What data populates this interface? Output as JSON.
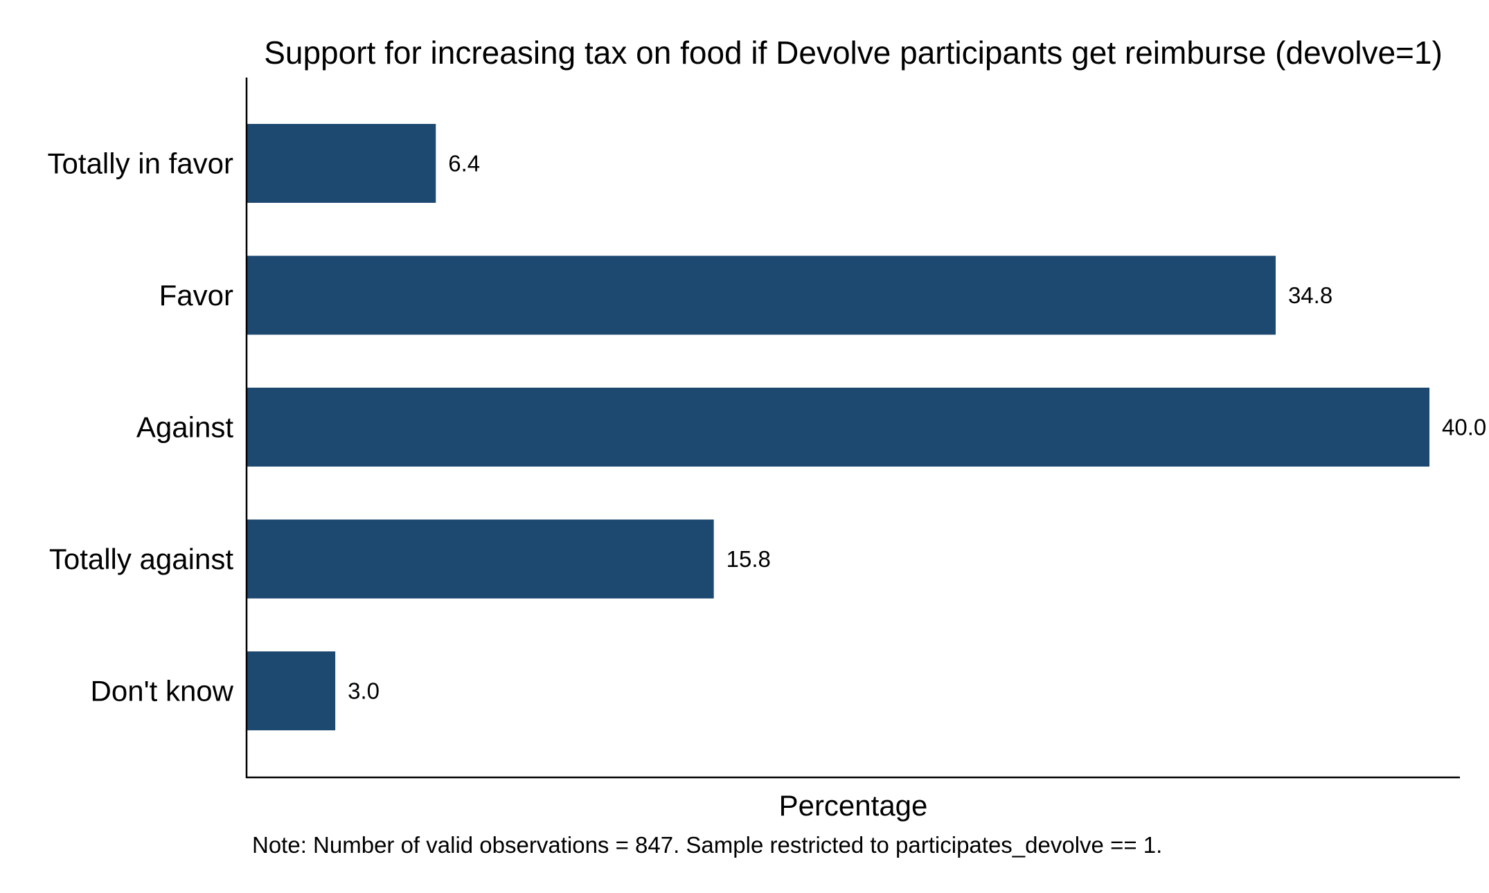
{
  "chart_data": {
    "type": "bar",
    "orientation": "horizontal",
    "title": "Support for increasing tax on food if Devolve participants get reimburse (devolve=1)",
    "categories": [
      "Totally in favor",
      "Favor",
      "Against",
      "Totally against",
      "Don't know"
    ],
    "values": [
      6.4,
      34.8,
      40.0,
      15.8,
      3.0
    ],
    "value_labels": [
      "6.4",
      "34.8",
      "40.0",
      "15.8",
      "3.0"
    ],
    "xlabel": "Percentage",
    "ylabel": "",
    "xlim": [
      0,
      41
    ],
    "grid": false,
    "legend": "none",
    "bar_color": "#1d4870",
    "note": "Note: Number of valid observations = 847. Sample restricted to participates_devolve == 1."
  }
}
